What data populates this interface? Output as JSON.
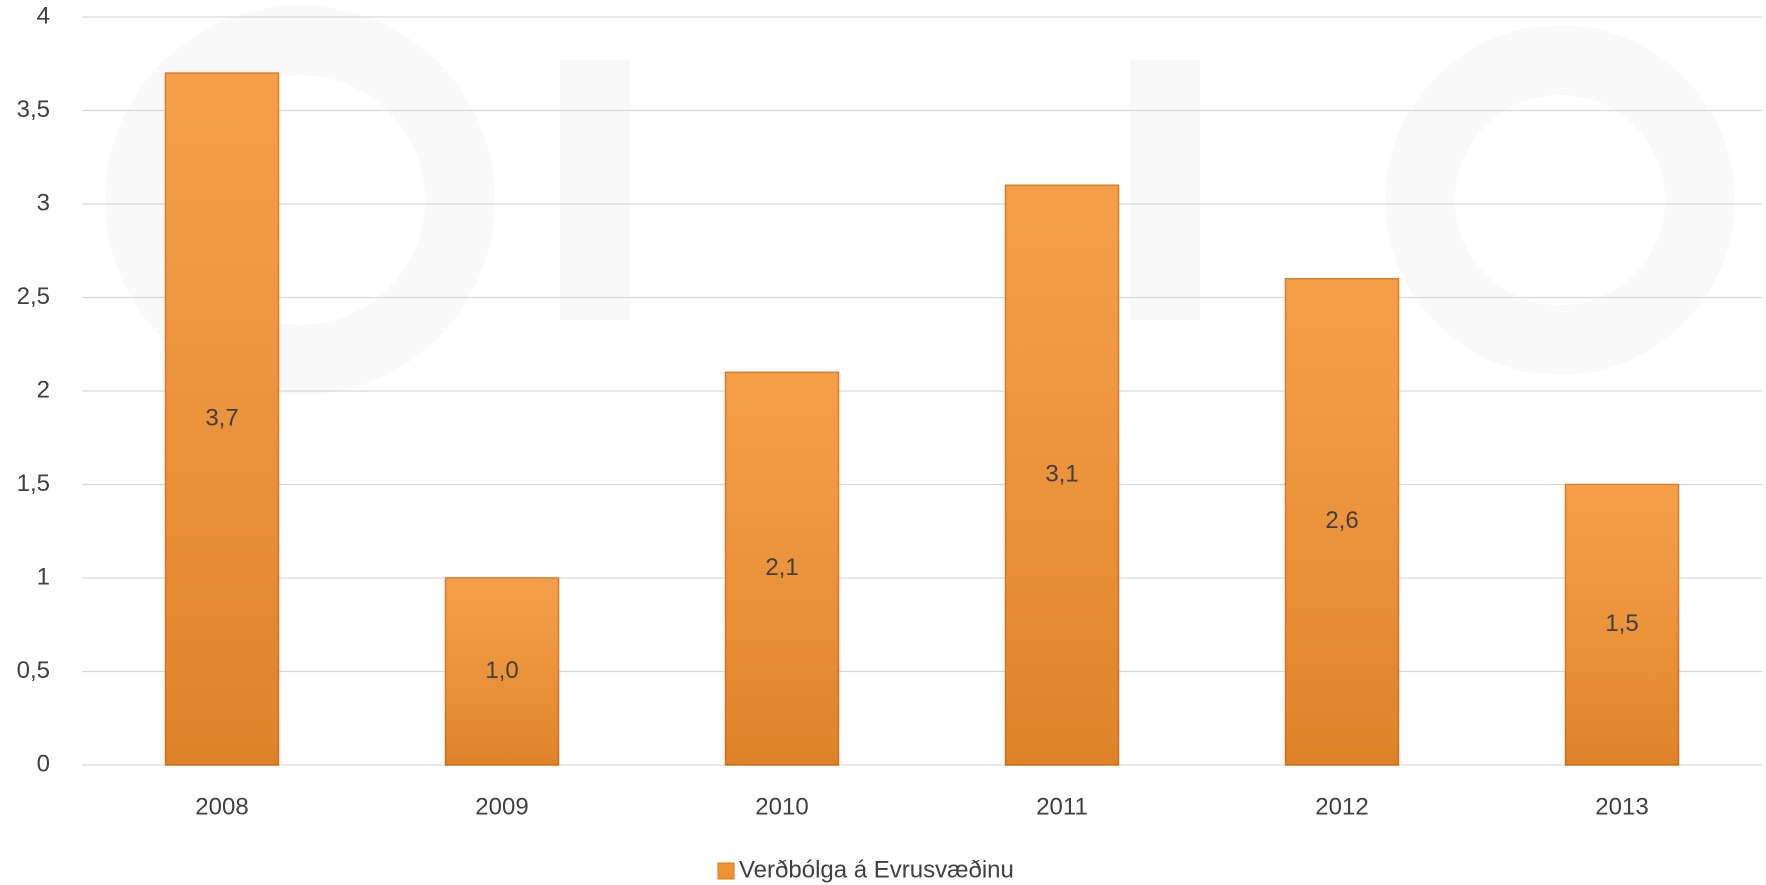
{
  "chart_data": {
    "type": "bar",
    "categories": [
      "2008",
      "2009",
      "2010",
      "2011",
      "2012",
      "2013"
    ],
    "series": [
      {
        "name": "Verðbólga á Evrusvæðinu",
        "color": "#f39230",
        "values": [
          3.7,
          1.0,
          2.1,
          3.1,
          2.6,
          1.5
        ],
        "value_labels": [
          "3,7",
          "1,0",
          "2,1",
          "3,1",
          "2,6",
          "1,5"
        ]
      }
    ],
    "ylim": [
      0,
      4
    ],
    "yticks": [
      0,
      {
        "value": 0.5,
        "label": "0,5"
      },
      1,
      {
        "value": 1.5,
        "label": "1,5"
      },
      2,
      {
        "value": 2.5,
        "label": "2,5"
      },
      3,
      {
        "value": 3.5,
        "label": "3,5"
      },
      4
    ],
    "grid": true,
    "legend": "bottom"
  }
}
